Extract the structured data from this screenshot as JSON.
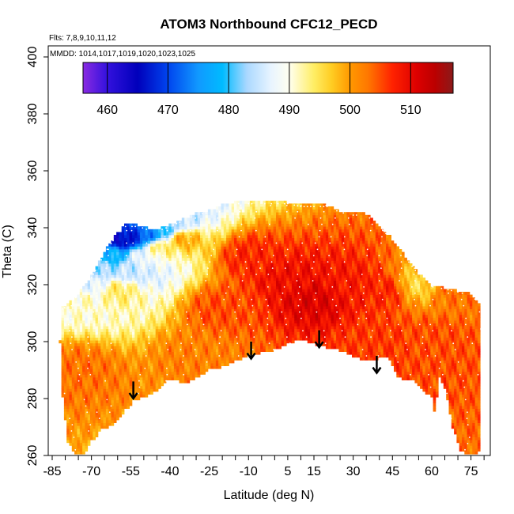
{
  "chart_data": {
    "type": "heatmap",
    "title": "ATOM3 Northbound CFC12_PECD",
    "notes": {
      "flights": "Flts: 7,8,9,10,11,12",
      "dates": "MMDD: 1014,1017,1019,1020,1023,1025"
    },
    "xlabel": "Latitude (deg N)",
    "ylabel": "Theta (C)",
    "xlim": [
      -85,
      81
    ],
    "ylim": [
      260,
      403
    ],
    "x_ticks": [
      -85,
      -70,
      -55,
      -40,
      -25,
      -10,
      5,
      15,
      30,
      45,
      60,
      75
    ],
    "y_ticks": [
      260,
      280,
      300,
      320,
      340,
      360,
      380,
      400
    ],
    "colorbar": {
      "range": [
        456,
        517
      ],
      "ticks": [
        460,
        470,
        480,
        490,
        500,
        510
      ],
      "stops": [
        {
          "v": 456,
          "color": "#8a2be2"
        },
        {
          "v": 460,
          "color": "#3311dd"
        },
        {
          "v": 465,
          "color": "#0000bb"
        },
        {
          "v": 470,
          "color": "#0044ee"
        },
        {
          "v": 475,
          "color": "#1199ff"
        },
        {
          "v": 479,
          "color": "#00bbff"
        },
        {
          "v": 483,
          "color": "#aad8ff"
        },
        {
          "v": 487,
          "color": "#e8f4ff"
        },
        {
          "v": 490,
          "color": "#fffff0"
        },
        {
          "v": 494,
          "color": "#ffee66"
        },
        {
          "v": 497,
          "color": "#ffcc22"
        },
        {
          "v": 500,
          "color": "#ff9900"
        },
        {
          "v": 503,
          "color": "#ff7700"
        },
        {
          "v": 507,
          "color": "#ff2200"
        },
        {
          "v": 511,
          "color": "#dd0000"
        },
        {
          "v": 514,
          "color": "#bb0000"
        },
        {
          "v": 517,
          "color": "#8b1a1a"
        }
      ]
    },
    "field": {
      "top_boundary": [
        [
          -81,
          312
        ],
        [
          -78,
          314
        ],
        [
          -74,
          318
        ],
        [
          -70,
          323
        ],
        [
          -67,
          328
        ],
        [
          -64,
          333
        ],
        [
          -61,
          337
        ],
        [
          -57,
          341
        ],
        [
          -52,
          341
        ],
        [
          -46,
          339
        ],
        [
          -40,
          341
        ],
        [
          -35,
          343
        ],
        [
          -30,
          345
        ],
        [
          -25,
          346
        ],
        [
          -20,
          348
        ],
        [
          -15,
          349
        ],
        [
          -10,
          349
        ],
        [
          -5,
          349
        ],
        [
          0,
          349
        ],
        [
          5,
          349
        ],
        [
          10,
          348
        ],
        [
          15,
          348
        ],
        [
          20,
          348
        ],
        [
          25,
          346
        ],
        [
          30,
          345
        ],
        [
          35,
          345
        ],
        [
          40,
          341
        ],
        [
          45,
          336
        ],
        [
          50,
          330
        ],
        [
          55,
          324
        ],
        [
          60,
          320
        ],
        [
          65,
          319
        ],
        [
          70,
          318
        ],
        [
          75,
          317
        ],
        [
          78,
          314
        ],
        [
          79,
          302
        ]
      ],
      "bottom_boundary": [
        [
          79,
          263
        ],
        [
          77,
          260
        ],
        [
          74,
          260
        ],
        [
          71,
          262
        ],
        [
          68,
          270
        ],
        [
          65,
          284
        ],
        [
          63,
          288
        ],
        [
          62,
          280
        ],
        [
          61,
          275
        ],
        [
          60,
          281
        ],
        [
          58,
          282
        ],
        [
          54,
          286
        ],
        [
          50,
          286
        ],
        [
          47,
          288
        ],
        [
          44,
          294
        ],
        [
          40,
          294
        ],
        [
          35,
          293
        ],
        [
          30,
          295
        ],
        [
          25,
          297
        ],
        [
          20,
          298
        ],
        [
          16,
          299
        ],
        [
          10,
          301
        ],
        [
          5,
          299
        ],
        [
          0,
          297
        ],
        [
          -5,
          296
        ],
        [
          -10,
          295
        ],
        [
          -15,
          293
        ],
        [
          -20,
          291
        ],
        [
          -25,
          290
        ],
        [
          -30,
          287
        ],
        [
          -35,
          285
        ],
        [
          -38,
          287
        ],
        [
          -41,
          286
        ],
        [
          -46,
          282
        ],
        [
          -51,
          280
        ],
        [
          -54,
          279
        ],
        [
          -57,
          276
        ],
        [
          -61,
          271
        ],
        [
          -66,
          269
        ],
        [
          -70,
          265
        ],
        [
          -73,
          260
        ],
        [
          -76,
          260
        ],
        [
          -79,
          265
        ],
        [
          -81,
          281
        ],
        [
          -82,
          300
        ],
        [
          -81,
          312
        ]
      ],
      "features": [
        {
          "x": -58,
          "y": 336,
          "v": 465
        },
        {
          "x": -53,
          "y": 337,
          "v": 468
        },
        {
          "x": -47,
          "y": 338,
          "v": 474
        },
        {
          "x": -42,
          "y": 340,
          "v": 480
        },
        {
          "x": -37,
          "y": 342,
          "v": 485
        },
        {
          "x": -62,
          "y": 330,
          "v": 478
        },
        {
          "x": -66,
          "y": 326,
          "v": 483
        },
        {
          "x": -70,
          "y": 320,
          "v": 487
        },
        {
          "x": -74,
          "y": 315,
          "v": 491
        },
        {
          "x": -56,
          "y": 325,
          "v": 485
        },
        {
          "x": -50,
          "y": 330,
          "v": 488
        },
        {
          "x": -44,
          "y": 333,
          "v": 494
        },
        {
          "x": -60,
          "y": 318,
          "v": 494
        },
        {
          "x": -35,
          "y": 336,
          "v": 499
        },
        {
          "x": -10,
          "y": 330,
          "v": 507
        },
        {
          "x": 5,
          "y": 322,
          "v": 509
        },
        {
          "x": 15,
          "y": 315,
          "v": 511
        },
        {
          "x": 28,
          "y": 320,
          "v": 508
        },
        {
          "x": 42,
          "y": 318,
          "v": 507
        },
        {
          "x": -20,
          "y": 312,
          "v": 505
        },
        {
          "x": 55,
          "y": 320,
          "v": 496
        },
        {
          "x": 68,
          "y": 318,
          "v": 503
        },
        {
          "x": 60,
          "y": 300,
          "v": 505
        },
        {
          "x": -75,
          "y": 290,
          "v": 503
        },
        {
          "x": -30,
          "y": 295,
          "v": 502
        },
        {
          "x": 40,
          "y": 300,
          "v": 506
        }
      ]
    },
    "annotations": [
      {
        "type": "arrow-down",
        "x": -54,
        "y_from": 286,
        "y_to": 280
      },
      {
        "type": "arrow-down",
        "x": -9,
        "y_from": 300,
        "y_to": 294
      },
      {
        "type": "arrow-down",
        "x": 17,
        "y_from": 304,
        "y_to": 298
      },
      {
        "type": "arrow-down",
        "x": 39,
        "y_from": 295,
        "y_to": 289
      }
    ]
  }
}
